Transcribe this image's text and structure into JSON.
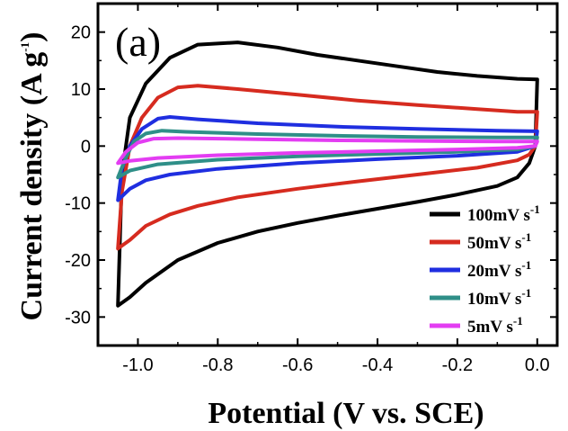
{
  "chart_data": {
    "type": "line",
    "panel_label": "(a)",
    "xlabel": "Potential (V vs. SCE)",
    "ylabel_main": "Current density (A g",
    "ylabel_sup": "-1",
    "ylabel_end": ")",
    "xlim": [
      -1.1,
      0.05
    ],
    "ylim": [
      -35,
      25
    ],
    "xticks": [
      -1.0,
      -0.8,
      -0.6,
      -0.4,
      -0.2,
      0.0
    ],
    "xtick_labels": [
      "-1.0",
      "-0.8",
      "-0.6",
      "-0.4",
      "-0.2",
      "0.0"
    ],
    "yticks": [
      -30,
      -20,
      -10,
      0,
      10,
      20
    ],
    "ytick_labels": [
      "-30",
      "-20",
      "-10",
      "0",
      "10",
      "20"
    ],
    "legend_position": "bottom-right",
    "series": [
      {
        "name": "100mV s",
        "unit_sup": "-1",
        "color": "#000000",
        "upper": [
          [
            -1.05,
            -28
          ],
          [
            -1.04,
            -5
          ],
          [
            -1.02,
            5
          ],
          [
            -0.98,
            11
          ],
          [
            -0.92,
            15.5
          ],
          [
            -0.85,
            17.8
          ],
          [
            -0.75,
            18.2
          ],
          [
            -0.65,
            17.3
          ],
          [
            -0.55,
            16
          ],
          [
            -0.45,
            15
          ],
          [
            -0.35,
            14
          ],
          [
            -0.25,
            13
          ],
          [
            -0.15,
            12.3
          ],
          [
            -0.05,
            11.8
          ],
          [
            0.0,
            11.7
          ]
        ],
        "lower": [
          [
            0.0,
            11.7
          ],
          [
            -0.005,
            0
          ],
          [
            -0.02,
            -3
          ],
          [
            -0.05,
            -5.5
          ],
          [
            -0.1,
            -7
          ],
          [
            -0.2,
            -8.5
          ],
          [
            -0.3,
            -9.8
          ],
          [
            -0.4,
            -11
          ],
          [
            -0.5,
            -12.2
          ],
          [
            -0.6,
            -13.5
          ],
          [
            -0.7,
            -15
          ],
          [
            -0.8,
            -17
          ],
          [
            -0.9,
            -20
          ],
          [
            -0.98,
            -24
          ],
          [
            -1.02,
            -26.5
          ],
          [
            -1.05,
            -28
          ]
        ]
      },
      {
        "name": "50mV s",
        "unit_sup": "-1",
        "color": "#d62b1f",
        "upper": [
          [
            -1.05,
            -18
          ],
          [
            -1.04,
            -8
          ],
          [
            -1.02,
            0
          ],
          [
            -0.99,
            5
          ],
          [
            -0.95,
            8.5
          ],
          [
            -0.9,
            10.3
          ],
          [
            -0.85,
            10.6
          ],
          [
            -0.75,
            10
          ],
          [
            -0.6,
            9
          ],
          [
            -0.45,
            8
          ],
          [
            -0.3,
            7.2
          ],
          [
            -0.15,
            6.5
          ],
          [
            -0.05,
            6
          ],
          [
            0.0,
            6
          ]
        ],
        "lower": [
          [
            0.0,
            6
          ],
          [
            -0.005,
            0
          ],
          [
            -0.02,
            -1.5
          ],
          [
            -0.05,
            -2.5
          ],
          [
            -0.15,
            -3.8
          ],
          [
            -0.3,
            -5
          ],
          [
            -0.45,
            -6.2
          ],
          [
            -0.6,
            -7.5
          ],
          [
            -0.75,
            -9
          ],
          [
            -0.85,
            -10.5
          ],
          [
            -0.92,
            -12
          ],
          [
            -0.98,
            -14
          ],
          [
            -1.02,
            -16.5
          ],
          [
            -1.05,
            -18
          ]
        ]
      },
      {
        "name": "20mV s",
        "unit_sup": "-1",
        "color": "#1f2ee0",
        "upper": [
          [
            -1.05,
            -9.5
          ],
          [
            -1.04,
            -4
          ],
          [
            -1.02,
            0
          ],
          [
            -0.99,
            3
          ],
          [
            -0.95,
            4.8
          ],
          [
            -0.92,
            5.1
          ],
          [
            -0.85,
            4.7
          ],
          [
            -0.7,
            4
          ],
          [
            -0.5,
            3.4
          ],
          [
            -0.3,
            3
          ],
          [
            -0.1,
            2.7
          ],
          [
            0.0,
            2.6
          ]
        ],
        "lower": [
          [
            0.0,
            2.6
          ],
          [
            -0.005,
            0
          ],
          [
            -0.05,
            -1
          ],
          [
            -0.2,
            -1.7
          ],
          [
            -0.4,
            -2.3
          ],
          [
            -0.6,
            -3
          ],
          [
            -0.8,
            -4
          ],
          [
            -0.92,
            -5
          ],
          [
            -0.98,
            -6
          ],
          [
            -1.02,
            -7.5
          ],
          [
            -1.05,
            -9.5
          ]
        ]
      },
      {
        "name": "10mV s",
        "unit_sup": "-1",
        "color": "#2f8f88",
        "upper": [
          [
            -1.05,
            -5.5
          ],
          [
            -1.03,
            -2
          ],
          [
            -1.01,
            0.8
          ],
          [
            -0.98,
            2.2
          ],
          [
            -0.94,
            2.7
          ],
          [
            -0.88,
            2.5
          ],
          [
            -0.7,
            2.1
          ],
          [
            -0.5,
            1.8
          ],
          [
            -0.3,
            1.6
          ],
          [
            -0.1,
            1.5
          ],
          [
            0.0,
            1.5
          ]
        ],
        "lower": [
          [
            0.0,
            1.5
          ],
          [
            -0.005,
            0
          ],
          [
            -0.05,
            -0.6
          ],
          [
            -0.2,
            -1
          ],
          [
            -0.4,
            -1.4
          ],
          [
            -0.6,
            -1.8
          ],
          [
            -0.8,
            -2.4
          ],
          [
            -0.95,
            -3.2
          ],
          [
            -1.02,
            -4.3
          ],
          [
            -1.05,
            -5.5
          ]
        ]
      },
      {
        "name": "5mV s",
        "unit_sup": "-1",
        "color": "#e33df2",
        "upper": [
          [
            -1.05,
            -3
          ],
          [
            -1.03,
            -1
          ],
          [
            -1.0,
            0.6
          ],
          [
            -0.96,
            1.3
          ],
          [
            -0.9,
            1.4
          ],
          [
            -0.7,
            1.2
          ],
          [
            -0.5,
            1.0
          ],
          [
            -0.3,
            0.9
          ],
          [
            -0.1,
            0.8
          ],
          [
            0.0,
            0.8
          ]
        ],
        "lower": [
          [
            0.0,
            0.8
          ],
          [
            -0.005,
            0
          ],
          [
            -0.05,
            -0.3
          ],
          [
            -0.2,
            -0.6
          ],
          [
            -0.4,
            -0.9
          ],
          [
            -0.6,
            -1.2
          ],
          [
            -0.8,
            -1.6
          ],
          [
            -0.95,
            -2.1
          ],
          [
            -1.02,
            -2.6
          ],
          [
            -1.05,
            -3
          ]
        ]
      }
    ]
  }
}
